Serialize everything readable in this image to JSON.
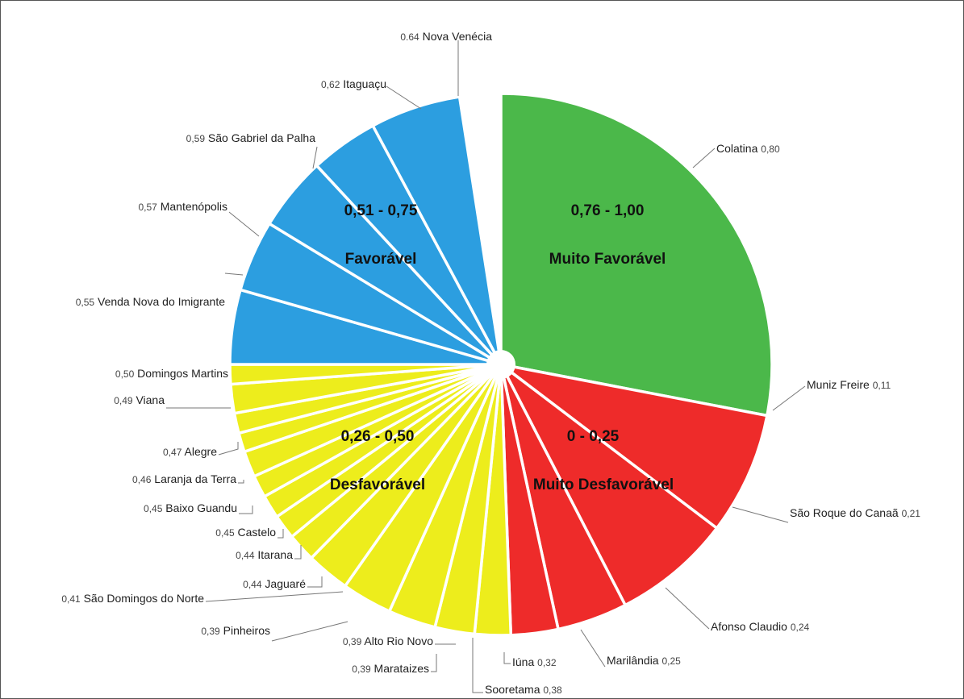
{
  "chart_data": {
    "type": "pie",
    "slices": [
      {
        "name": "Colatina",
        "value": "0,80",
        "group": 0
      },
      {
        "name": "Muniz Freire",
        "value": "0,11",
        "group": 1
      },
      {
        "name": "São Roque do Canaã",
        "value": "0,21",
        "group": 1
      },
      {
        "name": "Afonso Claudio",
        "value": "0,24",
        "group": 1
      },
      {
        "name": "Marilândia",
        "value": "0,25",
        "group": 1
      },
      {
        "name": "Iúna",
        "value": "0,32",
        "group": 2
      },
      {
        "name": "Sooretama",
        "value": "0,38",
        "group": 2
      },
      {
        "name": "Marataizes",
        "value": "0,39",
        "group": 2
      },
      {
        "name": "Alto Rio Novo",
        "value": "0,39",
        "group": 2
      },
      {
        "name": "Pinheiros",
        "value": "0,39",
        "group": 2
      },
      {
        "name": "São Domingos do Norte",
        "value": "0,41",
        "group": 2
      },
      {
        "name": "Jaguaré",
        "value": "0,44",
        "group": 2
      },
      {
        "name": "Itarana",
        "value": "0,44",
        "group": 2
      },
      {
        "name": "Castelo",
        "value": "0,45",
        "group": 2
      },
      {
        "name": "Baixo Guandu",
        "value": "0,45",
        "group": 2
      },
      {
        "name": "Laranja da Terra",
        "value": "0,46",
        "group": 2
      },
      {
        "name": "Alegre",
        "value": "0,47",
        "group": 2
      },
      {
        "name": "Viana",
        "value": "0,49",
        "group": 2
      },
      {
        "name": "Domingos Martins",
        "value": "0,50",
        "group": 2
      },
      {
        "name": "Venda Nova do Imigrante",
        "value": "0,55",
        "group": 3
      },
      {
        "name": "Mantenópolis",
        "value": "0,57",
        "group": 3
      },
      {
        "name": "São Gabriel da Palha",
        "value": "0,59",
        "group": 3
      },
      {
        "name": "Itaguaçu",
        "value": "0,62",
        "group": 3
      },
      {
        "name": "Nova Venécia",
        "value": "0.64",
        "group": 3
      }
    ],
    "groups": [
      {
        "range": "0,76 - 1,00",
        "label": "Muito Favorável",
        "color": "#4bb84a"
      },
      {
        "range": "0 - 0,25",
        "label": "Muito Desfavorável",
        "color": "#ee2b2a"
      },
      {
        "range": "0,26 - 0,50",
        "label": "Desfavorável",
        "color": "#eded1c"
      },
      {
        "range": "0,51 - 0,75",
        "label": "Favorável",
        "color": "#2c9ee0"
      }
    ]
  }
}
